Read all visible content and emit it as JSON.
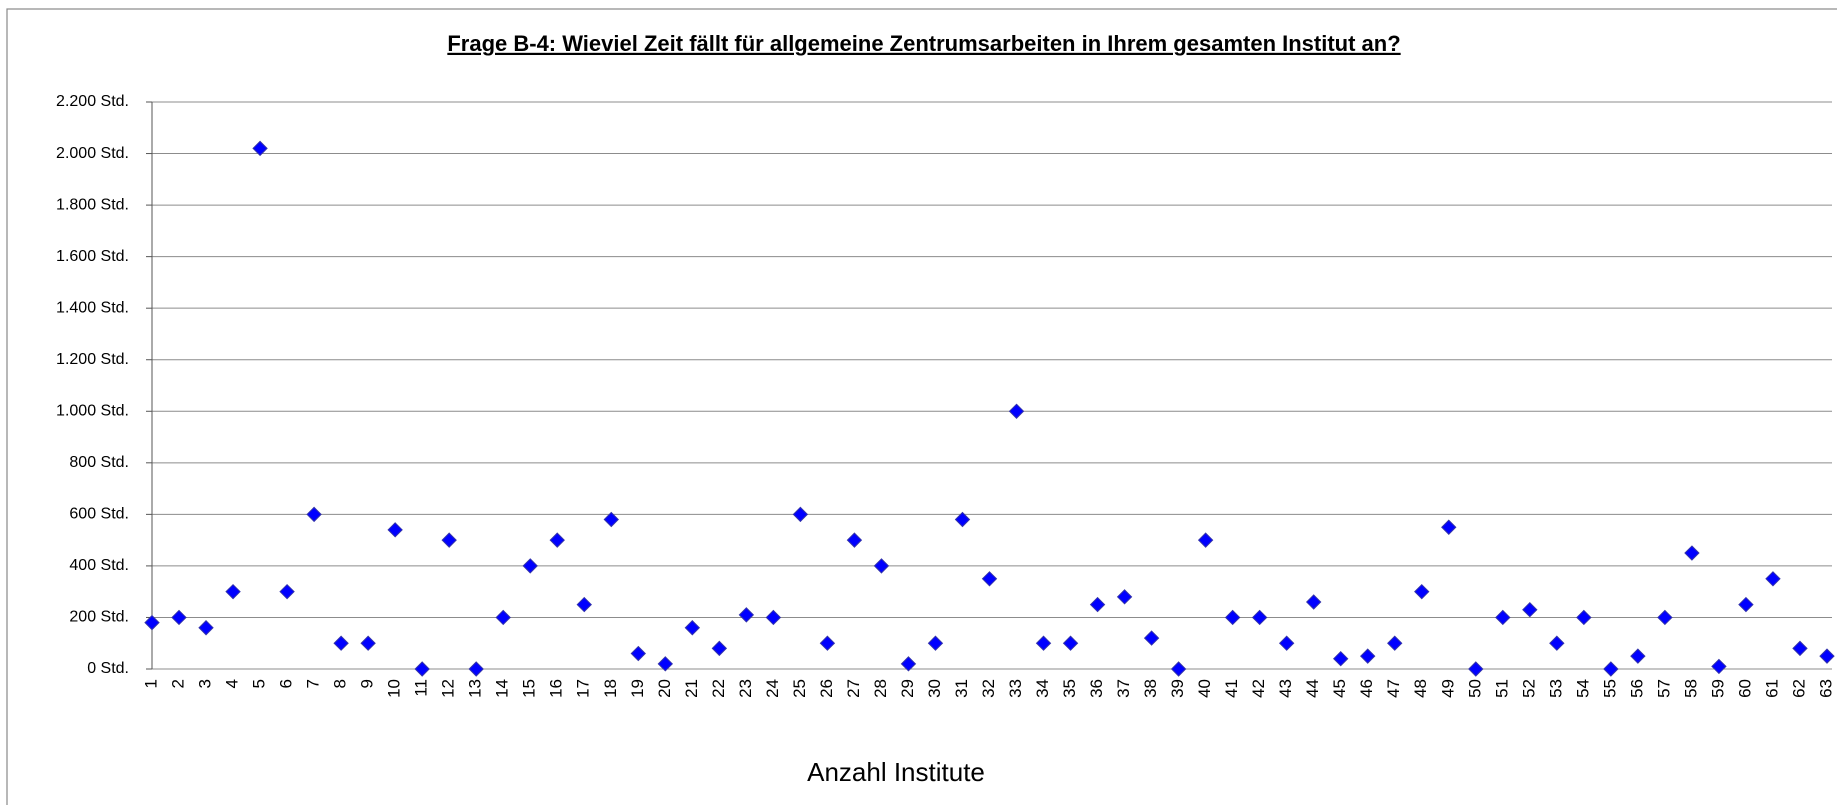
{
  "chart_data": {
    "type": "scatter",
    "title": "Frage B-4:  Wieviel Zeit fällt für allgemeine Zentrumsarbeiten in Ihrem gesamten Institut an?",
    "x_label": "Anzahl Institute",
    "categories": [
      "1",
      "2",
      "3",
      "4",
      "5",
      "6",
      "7",
      "8",
      "9",
      "10",
      "11",
      "12",
      "13",
      "14",
      "15",
      "16",
      "17",
      "18",
      "19",
      "20",
      "21",
      "22",
      "23",
      "24",
      "25",
      "26",
      "27",
      "28",
      "29",
      "30",
      "31",
      "32",
      "33",
      "34",
      "35",
      "36",
      "37",
      "38",
      "39",
      "40",
      "41",
      "42",
      "43",
      "44",
      "45",
      "46",
      "47",
      "48",
      "49",
      "50",
      "51",
      "52",
      "53",
      "54",
      "55",
      "56",
      "57",
      "58",
      "59",
      "60",
      "61",
      "62",
      "63"
    ],
    "values": [
      180,
      200,
      160,
      300,
      2020,
      300,
      600,
      100,
      100,
      540,
      0,
      500,
      0,
      200,
      400,
      500,
      250,
      580,
      60,
      20,
      160,
      80,
      210,
      200,
      600,
      100,
      500,
      400,
      20,
      100,
      580,
      350,
      1000,
      100,
      100,
      250,
      280,
      120,
      0,
      500,
      200,
      200,
      100,
      260,
      40,
      50,
      100,
      300,
      550,
      0,
      200,
      230,
      100,
      200,
      0,
      50,
      200,
      450,
      10,
      250,
      350,
      80,
      50
    ],
    "color": "#0000ff",
    "ylim": [
      0,
      2200
    ],
    "yticks": [
      {
        "value": 0,
        "label": "0 Std."
      },
      {
        "value": 200,
        "label": "200 Std."
      },
      {
        "value": 400,
        "label": "400 Std."
      },
      {
        "value": 600,
        "label": "600 Std."
      },
      {
        "value": 800,
        "label": "800 Std."
      },
      {
        "value": 1000,
        "label": "1.000 Std."
      },
      {
        "value": 1200,
        "label": "1.200 Std."
      },
      {
        "value": 1400,
        "label": "1.400 Std."
      },
      {
        "value": 1600,
        "label": "1.600 Std."
      },
      {
        "value": 1800,
        "label": "1.800 Std."
      },
      {
        "value": 2000,
        "label": "2.000 Std."
      },
      {
        "value": 2200,
        "label": "2.200 Std."
      }
    ],
    "grid": true
  }
}
